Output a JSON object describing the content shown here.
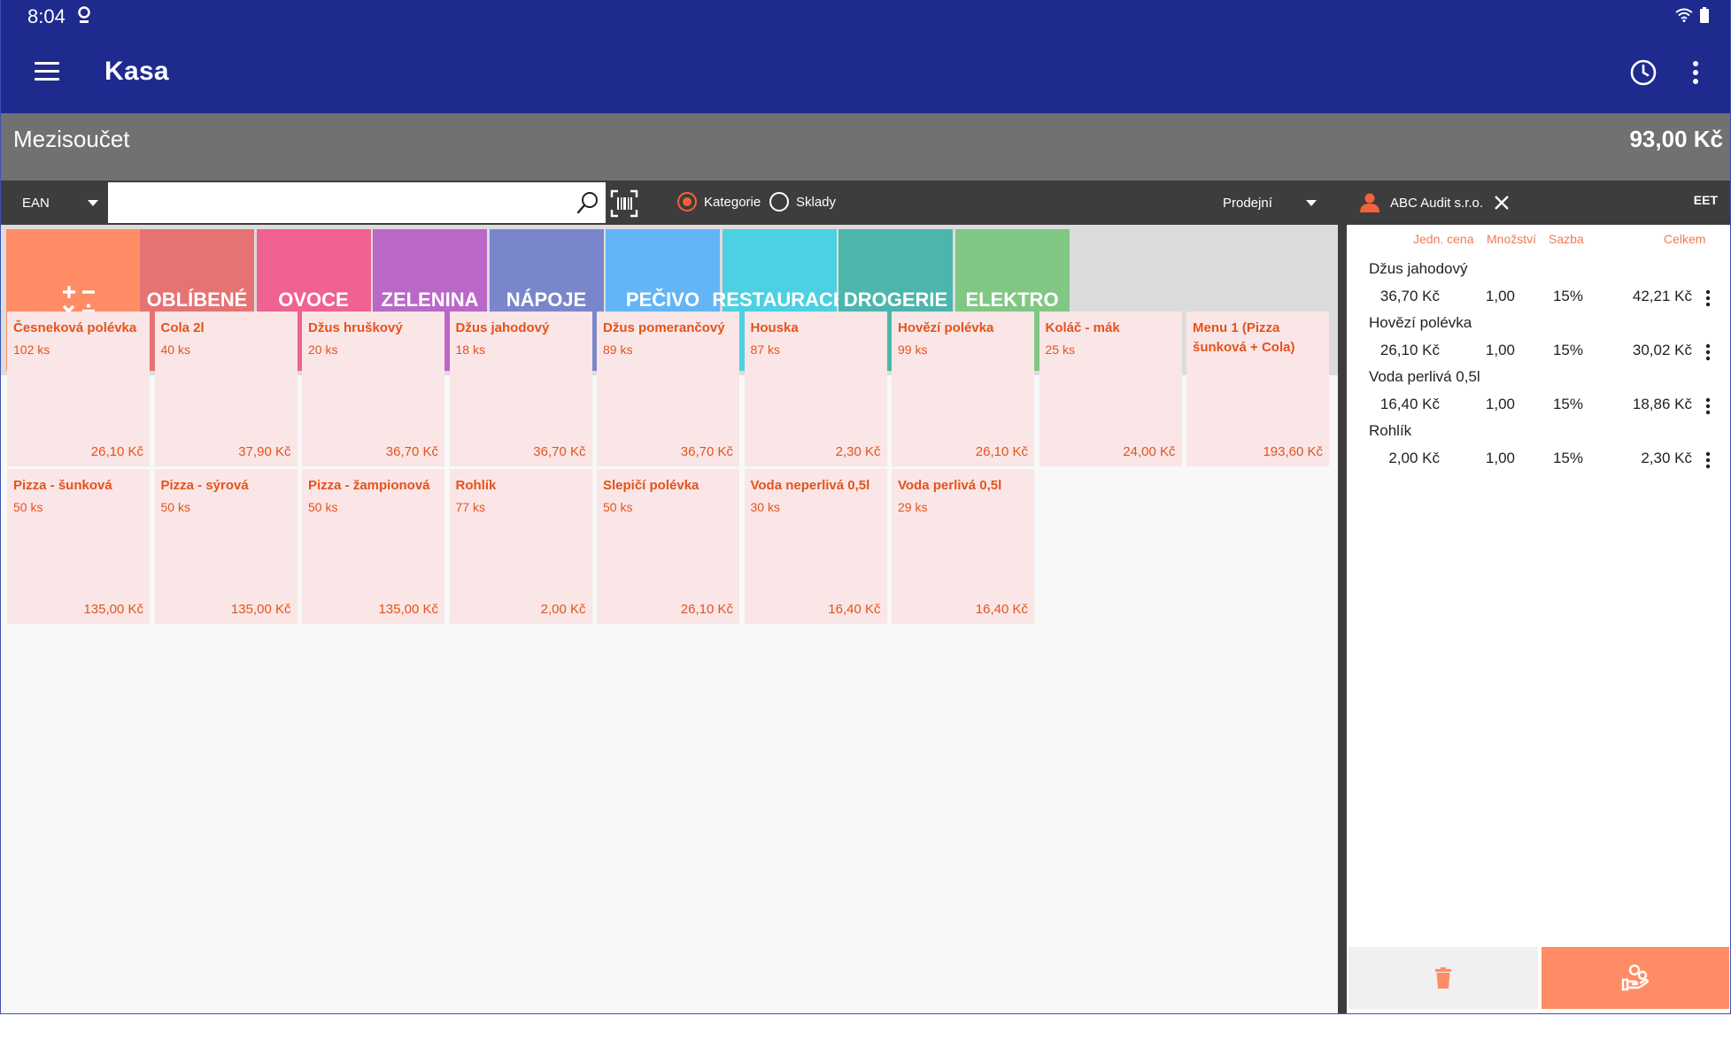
{
  "status_bar": {
    "time": "8:04"
  },
  "app_bar": {
    "title": "Kasa",
    "history_icon": "clock-icon",
    "more_icon": "more-vertical-icon",
    "menu_icon": "hamburger-icon"
  },
  "subtotal": {
    "label": "Mezisoučet",
    "value": "93,00 Kč"
  },
  "toolbar": {
    "search_type": "EAN",
    "search_placeholder": "",
    "filter_options": [
      {
        "label": "Kategorie",
        "selected": true
      },
      {
        "label": "Sklady",
        "selected": false
      }
    ],
    "stock": "Prodejní",
    "customer": "ABC Audit s.r.o.",
    "eet_label": "EET"
  },
  "categories": [
    {
      "label": "OBLÍBENÉ",
      "color": "#e57373"
    },
    {
      "label": "OVOCE",
      "color": "#f06292"
    },
    {
      "label": "ZELENINA",
      "color": "#ba68c8"
    },
    {
      "label": "NÁPOJE",
      "color": "#7986cb"
    },
    {
      "label": "PEČIVO",
      "color": "#64b5f6"
    },
    {
      "label": "RESTAURACE",
      "color": "#4dd0e1"
    },
    {
      "label": "DROGERIE",
      "color": "#4db6ac"
    },
    {
      "label": "ELEKTRO",
      "color": "#81c784"
    }
  ],
  "products": [
    {
      "name": "Česneková polévka",
      "stock": "102 ks",
      "price": "26,10 Kč"
    },
    {
      "name": "Cola 2l",
      "stock": "40 ks",
      "price": "37,90 Kč"
    },
    {
      "name": "Džus hruškový",
      "stock": "20 ks",
      "price": "36,70 Kč"
    },
    {
      "name": "Džus jahodový",
      "stock": "18 ks",
      "price": "36,70 Kč"
    },
    {
      "name": "Džus pomerančový",
      "stock": "89 ks",
      "price": "36,70 Kč"
    },
    {
      "name": "Houska",
      "stock": "87 ks",
      "price": "2,30 Kč"
    },
    {
      "name": "Hovězí polévka",
      "stock": "99 ks",
      "price": "26,10 Kč"
    },
    {
      "name": "Koláč - mák",
      "stock": "25 ks",
      "price": "24,00 Kč"
    },
    {
      "name": "Menu 1 (Pizza šunková + Cola)",
      "stock": "",
      "price": "193,60 Kč"
    },
    {
      "name": "Pizza - šunková",
      "stock": "50 ks",
      "price": "135,00 Kč"
    },
    {
      "name": "Pizza - sýrová",
      "stock": "50 ks",
      "price": "135,00 Kč"
    },
    {
      "name": "Pizza - žampionová",
      "stock": "50 ks",
      "price": "135,00 Kč"
    },
    {
      "name": "Rohlík",
      "stock": "77 ks",
      "price": "2,00 Kč"
    },
    {
      "name": "Slepičí polévka",
      "stock": "50 ks",
      "price": "26,10 Kč"
    },
    {
      "name": "Voda neperlivá 0,5l",
      "stock": "30 ks",
      "price": "16,40 Kč"
    },
    {
      "name": "Voda perlivá 0,5l",
      "stock": "29 ks",
      "price": "16,40 Kč"
    }
  ],
  "cart": {
    "columns": {
      "unit_price": "Jedn. cena",
      "quantity": "Množství",
      "rate": "Sazba",
      "total": "Celkem"
    },
    "items": [
      {
        "name": "Džus jahodový",
        "unit_price": "36,70 Kč",
        "quantity": "1,00",
        "rate": "15%",
        "total": "42,21 Kč"
      },
      {
        "name": "Hovězí polévka",
        "unit_price": "26,10 Kč",
        "quantity": "1,00",
        "rate": "15%",
        "total": "30,02 Kč"
      },
      {
        "name": "Voda perlivá 0,5l",
        "unit_price": "16,40 Kč",
        "quantity": "1,00",
        "rate": "15%",
        "total": "18,86 Kč"
      },
      {
        "name": "Rohlík",
        "unit_price": "2,00 Kč",
        "quantity": "1,00",
        "rate": "15%",
        "total": "2,30 Kč"
      }
    ],
    "delete_icon": "trash-icon",
    "pay_icon": "hand-pay-icon"
  },
  "colors": {
    "app_bar": "#1f2a8f",
    "accent": "#ff8c64",
    "product_tile": "#fae6e6",
    "product_text": "#e4531d"
  }
}
